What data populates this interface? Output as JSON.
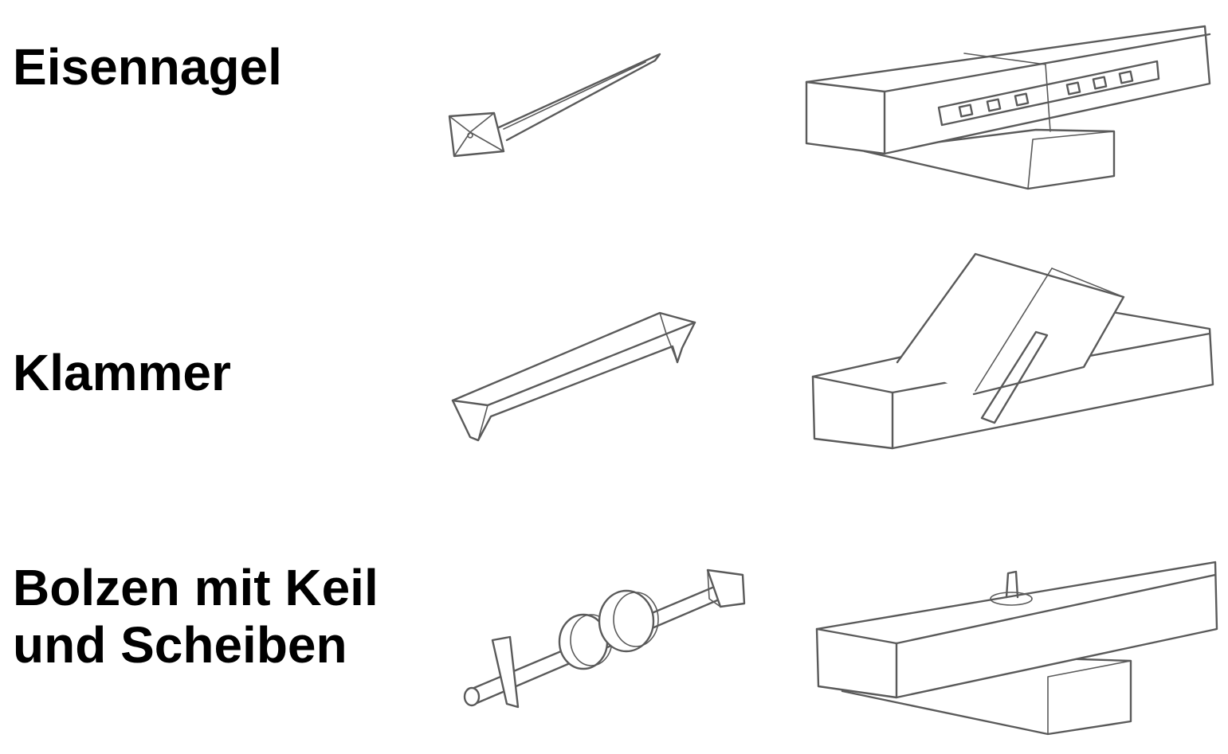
{
  "rows": [
    {
      "label_lines": [
        "Eisennagel"
      ],
      "tool_icon": "iron-nail-drawing",
      "joint_icon": "beams-joined-with-nail-plate-drawing"
    },
    {
      "label_lines": [
        "Klammer"
      ],
      "tool_icon": "clamp-staple-drawing",
      "joint_icon": "angled-beam-joint-with-clamp-drawing"
    },
    {
      "label_lines": [
        "Bolzen mit Keil",
        "und Scheiben"
      ],
      "tool_icon": "bolt-with-wedge-and-washers-drawing",
      "joint_icon": "crossed-beams-with-bolt-drawing"
    }
  ],
  "colors": {
    "text": "#000000",
    "line": "#5a5a5a",
    "background": "#ffffff"
  }
}
